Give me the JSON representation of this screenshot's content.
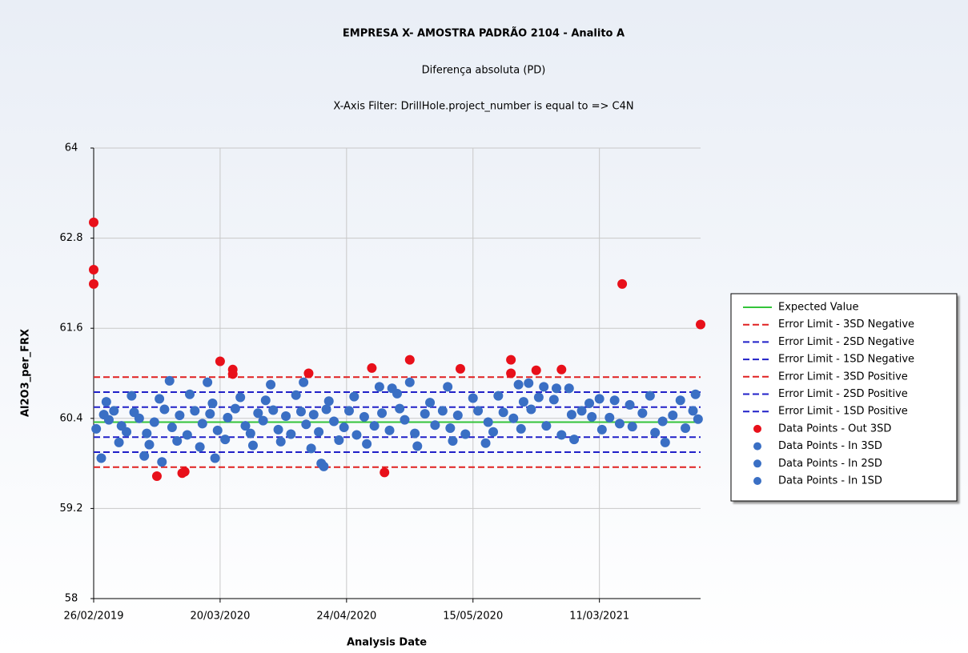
{
  "chart_data": {
    "type": "scatter",
    "title": "EMPRESA X- AMOSTRA PADRÃO 2104 - Analito A",
    "subtitle": "Diferença absoluta (PD)",
    "filter": "X-Axis Filter: DrillHole.project_number is equal to => C4N",
    "x_label": "Analysis Date",
    "y_label": "Al2O3_per_FRX",
    "xlim": [
      0,
      240
    ],
    "xticks": [
      {
        "value": 0,
        "label": "26/02/2019"
      },
      {
        "value": 50,
        "label": "20/03/2020"
      },
      {
        "value": 100,
        "label": "24/04/2020"
      },
      {
        "value": 150,
        "label": "15/05/2020"
      },
      {
        "value": 200,
        "label": "11/03/2021"
      }
    ],
    "ylim": [
      58,
      64
    ],
    "yticks": [
      58,
      59.2,
      60.4,
      61.6,
      62.8,
      64
    ],
    "grid": true,
    "legend": "right",
    "lines": [
      {
        "name": "Expected Value",
        "color": "#33c43a",
        "value": 60.35,
        "dashed": false
      },
      {
        "name": "Error Limit - 3SD Negative",
        "color": "#e02020",
        "value": 59.75,
        "dashed": true
      },
      {
        "name": "Error Limit - 2SD Negative",
        "color": "#2020c8",
        "value": 59.95,
        "dashed": true
      },
      {
        "name": "Error Limit - 1SD Negative",
        "color": "#2020c8",
        "value": 60.15,
        "dashed": true
      },
      {
        "name": "Error Limit - 3SD Positive",
        "color": "#e02020",
        "value": 60.95,
        "dashed": true
      },
      {
        "name": "Error Limit - 2SD Positive",
        "color": "#2020c8",
        "value": 60.75,
        "dashed": true
      },
      {
        "name": "Error Limit - 1SD Positive",
        "color": "#2020c8",
        "value": 60.55,
        "dashed": true
      }
    ],
    "series": [
      {
        "name": "Data Points - Out 3SD",
        "color": "#e8101a",
        "x": [
          0,
          0,
          0,
          25,
          35,
          36,
          50,
          55,
          55,
          85,
          110,
          115,
          125,
          145,
          165,
          165,
          175,
          185,
          209,
          240
        ],
        "values": [
          63.01,
          62.38,
          62.19,
          59.63,
          59.67,
          59.69,
          61.16,
          61.05,
          60.99,
          61.0,
          61.07,
          59.68,
          61.18,
          61.06,
          61.18,
          61.0,
          61.04,
          61.05,
          62.19,
          61.65
        ]
      },
      {
        "name": "Data Points - In 3SD",
        "color": "#3a6fc4",
        "x": [
          3,
          20,
          27,
          30,
          45,
          48,
          70,
          83,
          90,
          91,
          113,
          118,
          125,
          140,
          168,
          172,
          178,
          183,
          188
        ],
        "values": [
          59.87,
          59.9,
          59.82,
          60.9,
          60.88,
          59.87,
          60.85,
          60.88,
          59.8,
          59.76,
          60.82,
          60.8,
          60.88,
          60.82,
          60.85,
          60.87,
          60.82,
          60.8,
          60.8
        ]
      },
      {
        "name": "Data Points - In 2SD",
        "color": "#3a6fc4",
        "x": [
          5,
          10,
          15,
          22,
          26,
          33,
          38,
          42,
          47,
          52,
          58,
          63,
          68,
          74,
          80,
          86,
          93,
          97,
          103,
          108,
          120,
          128,
          133,
          142,
          150,
          155,
          160,
          170,
          176,
          182,
          190,
          196,
          200,
          206,
          212,
          220,
          226,
          232,
          238
        ],
        "values": [
          60.62,
          60.08,
          60.7,
          60.05,
          60.66,
          60.1,
          60.72,
          60.02,
          60.6,
          60.12,
          60.68,
          60.04,
          60.64,
          60.09,
          60.71,
          60.0,
          60.63,
          60.11,
          60.69,
          60.06,
          60.73,
          60.03,
          60.61,
          60.1,
          60.67,
          60.07,
          60.7,
          60.62,
          60.68,
          60.65,
          60.12,
          60.6,
          60.66,
          60.64,
          60.58,
          60.7,
          60.08,
          60.64,
          60.72
        ]
      },
      {
        "name": "Data Points - In 1SD",
        "color": "#3a6fc4",
        "x": [
          1,
          4,
          6,
          8,
          11,
          13,
          16,
          18,
          21,
          24,
          28,
          31,
          34,
          37,
          40,
          43,
          46,
          49,
          53,
          56,
          60,
          62,
          65,
          67,
          71,
          73,
          76,
          78,
          82,
          84,
          87,
          89,
          92,
          95,
          99,
          101,
          104,
          107,
          111,
          114,
          117,
          121,
          123,
          127,
          131,
          135,
          138,
          141,
          144,
          147,
          152,
          156,
          158,
          162,
          166,
          169,
          173,
          179,
          185,
          189,
          193,
          197,
          201,
          204,
          208,
          213,
          217,
          222,
          225,
          229,
          234,
          237,
          239
        ],
        "values": [
          60.26,
          60.45,
          60.38,
          60.5,
          60.3,
          60.22,
          60.48,
          60.4,
          60.2,
          60.35,
          60.52,
          60.28,
          60.44,
          60.18,
          60.5,
          60.33,
          60.46,
          60.24,
          60.41,
          60.53,
          60.3,
          60.2,
          60.47,
          60.37,
          60.51,
          60.25,
          60.43,
          60.19,
          60.49,
          60.32,
          60.45,
          60.22,
          60.52,
          60.36,
          60.28,
          60.5,
          60.18,
          60.42,
          60.3,
          60.47,
          60.24,
          60.53,
          60.38,
          60.2,
          60.46,
          60.31,
          60.5,
          60.27,
          60.44,
          60.19,
          60.5,
          60.35,
          60.22,
          60.48,
          60.4,
          60.26,
          60.52,
          60.3,
          60.18,
          60.45,
          60.5,
          60.42,
          60.25,
          60.41,
          60.33,
          60.29,
          60.47,
          60.21,
          60.36,
          60.44,
          60.27,
          60.5,
          60.39
        ]
      }
    ]
  }
}
